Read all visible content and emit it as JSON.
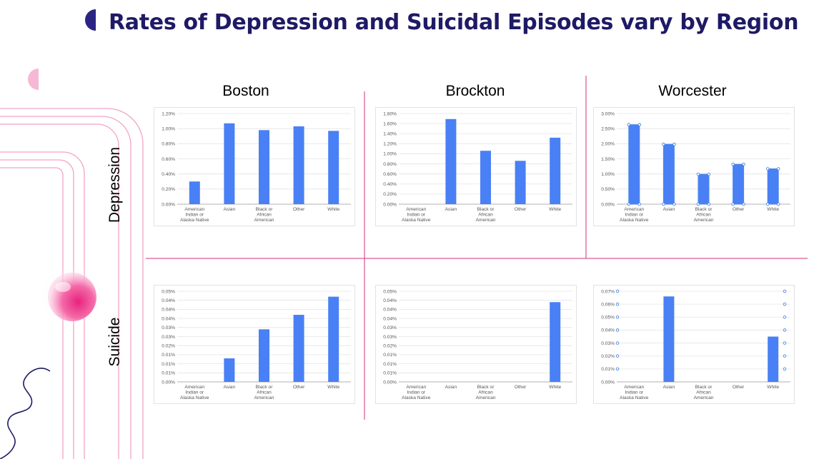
{
  "title": "Rates of Depression and Suicidal Episodes vary by Region",
  "regions": [
    "Boston",
    "Brockton",
    "Worcester"
  ],
  "measures": [
    "Depression",
    "Suicide"
  ],
  "colors": {
    "bar": "#4a80f5",
    "title": "#1e1a66",
    "divider": "#d0307a",
    "selection": "#4a86e8"
  },
  "chart_data": [
    {
      "type": "bar",
      "region": "Boston",
      "measure": "Depression",
      "categories": [
        "American Indian or Alaska Native",
        "Asian",
        "Black or African American",
        "Other",
        "White"
      ],
      "values": [
        0.3,
        1.07,
        0.98,
        1.03,
        0.97
      ],
      "ylim": [
        0,
        1.2
      ],
      "yticks": [
        0,
        0.2,
        0.4,
        0.6,
        0.8,
        1.0,
        1.2
      ],
      "decimals": 2,
      "gridlines": true
    },
    {
      "type": "bar",
      "region": "Brockton",
      "measure": "Depression",
      "categories": [
        "American Indian or Alaska Native",
        "Asian",
        "Black or African American",
        "Other",
        "White"
      ],
      "values": [
        null,
        1.69,
        1.06,
        0.86,
        1.32
      ],
      "ylim": [
        0,
        1.8
      ],
      "yticks": [
        0,
        0.2,
        0.4,
        0.6,
        0.8,
        1.0,
        1.2,
        1.4,
        1.6,
        1.8
      ],
      "decimals": 2,
      "gridlines": true
    },
    {
      "type": "bar",
      "region": "Worcester",
      "measure": "Depression",
      "categories": [
        "American Indian or Alaska Native",
        "Asian",
        "Black or African American",
        "Other",
        "White"
      ],
      "values": [
        2.63,
        1.98,
        0.99,
        1.32,
        1.17
      ],
      "ylim": [
        0,
        3.0
      ],
      "yticks": [
        0,
        0.5,
        1.0,
        1.5,
        2.0,
        2.5,
        3.0
      ],
      "decimals": 2,
      "gridlines": true,
      "selected": true
    },
    {
      "type": "bar",
      "region": "Boston",
      "measure": "Suicide",
      "categories": [
        "American Indian or Alaska Native",
        "Asian",
        "Black or African American",
        "Other",
        "White"
      ],
      "values": [
        null,
        0.013,
        0.029,
        0.037,
        0.047
      ],
      "ylim": [
        0,
        0.05
      ],
      "yticks": [
        0,
        0.005,
        0.01,
        0.015,
        0.02,
        0.025,
        0.03,
        0.035,
        0.04,
        0.045,
        0.05
      ],
      "decimals": 2,
      "gridlines": true
    },
    {
      "type": "bar",
      "region": "Brockton",
      "measure": "Suicide",
      "categories": [
        "American Indian or Alaska Native",
        "Asian",
        "Black or African American",
        "Other",
        "White"
      ],
      "values": [
        null,
        null,
        null,
        null,
        0.044
      ],
      "ylim": [
        0,
        0.05
      ],
      "yticks": [
        0,
        0.005,
        0.01,
        0.015,
        0.02,
        0.025,
        0.03,
        0.035,
        0.04,
        0.045,
        0.05
      ],
      "decimals": 2,
      "gridlines": true
    },
    {
      "type": "bar",
      "region": "Worcester",
      "measure": "Suicide",
      "categories": [
        "American Indian or Alaska Native",
        "Asian",
        "Black or African American",
        "Other",
        "White"
      ],
      "values": [
        null,
        0.066,
        null,
        null,
        0.035
      ],
      "ylim": [
        0,
        0.07
      ],
      "yticks": [
        0,
        0.01,
        0.02,
        0.03,
        0.04,
        0.05,
        0.06,
        0.07
      ],
      "decimals": 2,
      "gridlines": true,
      "selected": true
    }
  ]
}
